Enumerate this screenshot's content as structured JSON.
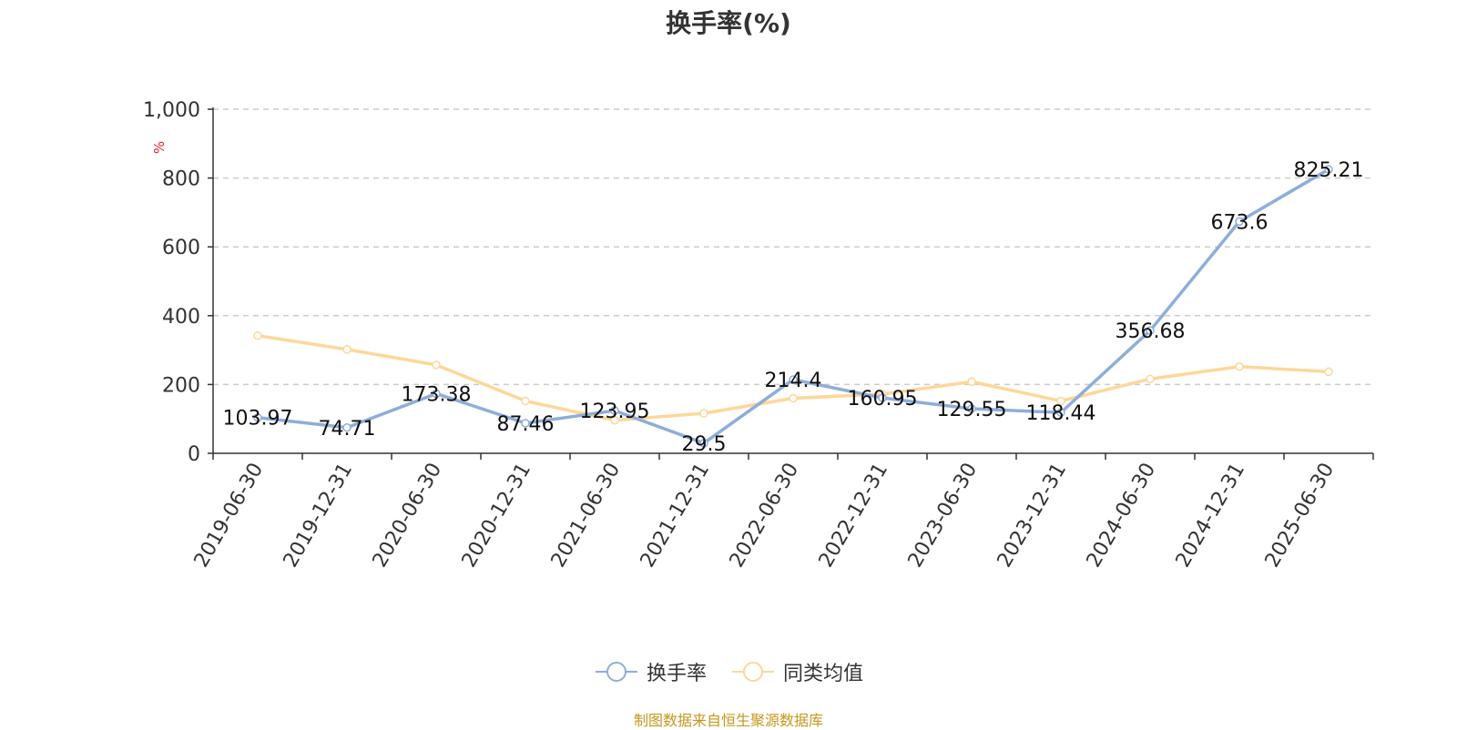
{
  "title": "换手率(%)",
  "source": "制图数据来自恒生聚源数据库",
  "chart_data": {
    "type": "line",
    "title": "换手率(%)",
    "ylabel": "%",
    "ylim": [
      0,
      1000
    ],
    "yticks": [
      "0",
      "200",
      "400",
      "600",
      "800",
      "1,000"
    ],
    "ytick_values": [
      0,
      200,
      400,
      600,
      800,
      1000
    ],
    "grid": true,
    "legend_position": "bottom",
    "categories": [
      "2019-06-30",
      "2019-12-31",
      "2020-06-30",
      "2020-12-31",
      "2021-06-30",
      "2021-12-31",
      "2022-06-30",
      "2022-12-31",
      "2023-06-30",
      "2023-12-31",
      "2024-06-30",
      "2024-12-31",
      "2025-06-30"
    ],
    "series": [
      {
        "name": "换手率",
        "color": "#8eaed8",
        "labels": true,
        "values": [
          103.97,
          74.71,
          173.38,
          87.46,
          123.95,
          29.5,
          214.4,
          160.95,
          129.55,
          118.44,
          356.68,
          673.6,
          825.21
        ]
      },
      {
        "name": "同类均值",
        "color": "#fdd79a",
        "labels": false,
        "values": [
          342,
          302,
          257,
          152,
          96,
          116,
          160,
          172,
          208,
          152,
          216,
          252,
          237
        ]
      }
    ]
  }
}
